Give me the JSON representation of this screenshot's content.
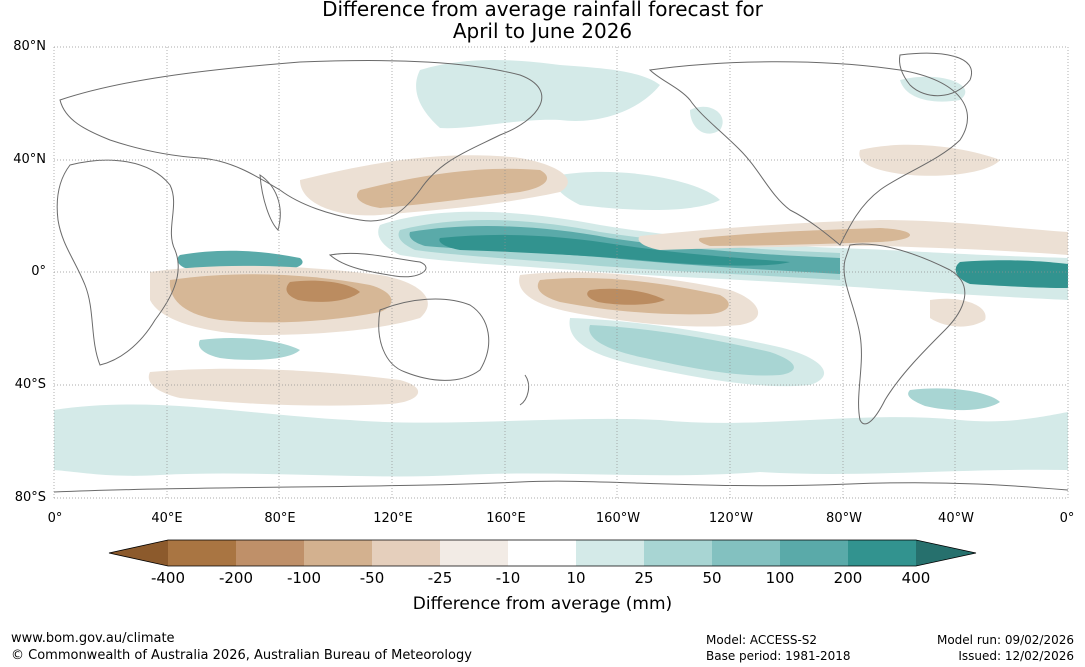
{
  "title_line1": "Difference from average rainfall forecast for",
  "title_line2": "April to June 2026",
  "lat_labels": [
    "80°N",
    "40°N",
    "0°",
    "40°S",
    "80°S"
  ],
  "lon_labels": [
    "0°",
    "40°E",
    "80°E",
    "120°E",
    "160°E",
    "160°W",
    "120°W",
    "80°W",
    "40°W",
    "0°"
  ],
  "legend": {
    "ticks": [
      "-400",
      "-200",
      "-100",
      "-50",
      "-25",
      "-10",
      "10",
      "25",
      "50",
      "100",
      "200",
      "400"
    ],
    "colors": [
      "#8c5a2c",
      "#a97542",
      "#bf9069",
      "#d3b18f",
      "#e5cfbc",
      "#f2ebe5",
      "#ffffff",
      "#d4eae8",
      "#a8d5d3",
      "#83c1c0",
      "#5aaaa9",
      "#32938f",
      "#26706d"
    ],
    "units_label": "Difference from average (mm)"
  },
  "map_colors": {
    "brown_light": "#ece0d4",
    "brown_mid": "#d6b796",
    "brown_dark": "#bb8c60",
    "teal_light": "#d4eae8",
    "teal_mid": "#a8d5d3",
    "teal_dark": "#5aaaa9",
    "teal_darker": "#32938f",
    "coast": "#6a6a6a"
  },
  "footer": {
    "website": "www.bom.gov.au/climate",
    "copyright": "© Commonwealth of Australia 2026, Australian Bureau of Meteorology",
    "model": "Model: ACCESS-S2",
    "base_period": "Base period: 1981-2018",
    "model_run": "Model run: 09/02/2026",
    "issued": "Issued: 12/02/2026"
  }
}
